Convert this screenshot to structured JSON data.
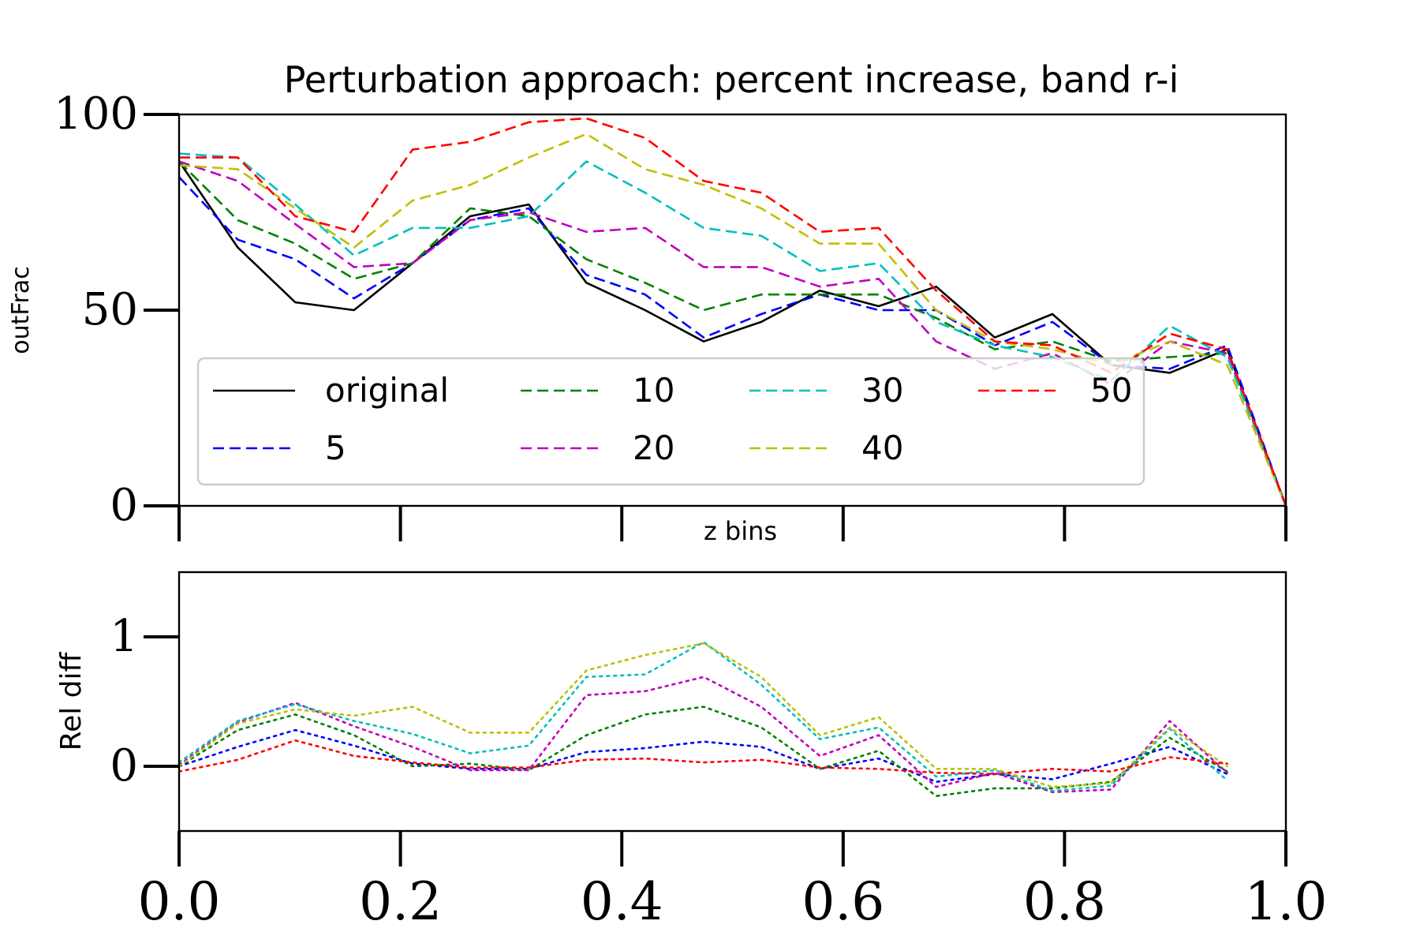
{
  "chart_data": [
    {
      "type": "line",
      "title": "Perturbation approach: percent increase, band r-i",
      "xlabel": "z bins",
      "ylabel": "outFrac",
      "xlim": [
        0.0,
        1.0
      ],
      "ylim": [
        0,
        100
      ],
      "xticks": [
        "0.0",
        "0.2",
        "0.4",
        "0.6",
        "0.8",
        "1.0"
      ],
      "yticks": [
        "0",
        "50",
        "100"
      ],
      "grid": false,
      "legend_position": "lower-left",
      "x": [
        0.0,
        0.053,
        0.105,
        0.158,
        0.211,
        0.263,
        0.316,
        0.368,
        0.421,
        0.474,
        0.526,
        0.579,
        0.632,
        0.684,
        0.737,
        0.789,
        0.842,
        0.895,
        0.947,
        1.0
      ],
      "series": [
        {
          "name": "original",
          "color": "#000000",
          "style": "solid",
          "values": [
            88,
            66,
            52,
            50,
            62,
            74,
            77,
            57,
            50,
            42,
            47,
            55,
            51,
            56,
            43,
            49,
            36,
            34,
            40,
            0
          ]
        },
        {
          "name": "5",
          "color": "#0000ff",
          "style": "dashed",
          "values": [
            84,
            68,
            63,
            53,
            62,
            73,
            76,
            59,
            54,
            43,
            49,
            54,
            50,
            50,
            41,
            47,
            36,
            35,
            41,
            0
          ]
        },
        {
          "name": "10",
          "color": "#008000",
          "style": "dashed",
          "values": [
            88,
            73,
            67,
            58,
            62,
            76,
            74,
            63,
            57,
            50,
            54,
            54,
            54,
            48,
            40,
            42,
            37,
            38,
            39,
            0
          ]
        },
        {
          "name": "20",
          "color": "#bf00bf",
          "style": "dashed",
          "values": [
            88,
            83,
            72,
            61,
            62,
            73,
            75,
            70,
            71,
            61,
            61,
            56,
            58,
            42,
            35,
            39,
            31,
            42,
            39,
            0
          ]
        },
        {
          "name": "30",
          "color": "#00bfbf",
          "style": "dashed",
          "values": [
            90,
            89,
            77,
            64,
            71,
            71,
            74,
            88,
            80,
            71,
            69,
            60,
            62,
            47,
            41,
            38,
            32,
            46,
            38,
            0
          ]
        },
        {
          "name": "40",
          "color": "#bfbf00",
          "style": "dashed",
          "values": [
            87,
            86,
            76,
            66,
            78,
            82,
            89,
            95,
            86,
            82,
            76,
            67,
            67,
            50,
            42,
            40,
            36,
            42,
            36,
            0
          ]
        },
        {
          "name": "50",
          "color": "#ff0000",
          "style": "dashed",
          "values": [
            89,
            89,
            74,
            70,
            91,
            93,
            98,
            99,
            94,
            83,
            80,
            70,
            71,
            55,
            42,
            41,
            34,
            44,
            40,
            0
          ]
        }
      ]
    },
    {
      "type": "line",
      "xlabel": "z bins",
      "ylabel": "Rel diff",
      "xlim": [
        0.0,
        1.0
      ],
      "ylim": [
        -0.5,
        1.5
      ],
      "xticks": [
        "0.0",
        "0.2",
        "0.4",
        "0.6",
        "0.8",
        "1.0"
      ],
      "yticks": [
        "0",
        "1"
      ],
      "grid": false,
      "x": [
        0.0,
        0.053,
        0.105,
        0.158,
        0.211,
        0.263,
        0.316,
        0.368,
        0.421,
        0.474,
        0.526,
        0.579,
        0.632,
        0.684,
        0.737,
        0.789,
        0.842,
        0.895,
        0.947
      ],
      "series": [
        {
          "name": "5",
          "color": "#0000ff",
          "style": "dotted",
          "values": [
            0.0,
            0.15,
            0.28,
            0.16,
            0.02,
            -0.02,
            -0.02,
            0.11,
            0.14,
            0.19,
            0.15,
            -0.02,
            0.06,
            -0.12,
            -0.06,
            -0.1,
            0.02,
            0.15,
            -0.06
          ]
        },
        {
          "name": "10",
          "color": "#008000",
          "style": "dotted",
          "values": [
            0.0,
            0.28,
            0.4,
            0.24,
            0.0,
            0.02,
            -0.03,
            0.24,
            0.4,
            0.46,
            0.3,
            -0.02,
            0.12,
            -0.23,
            -0.17,
            -0.17,
            -0.12,
            0.22,
            -0.04
          ]
        },
        {
          "name": "20",
          "color": "#bf00bf",
          "style": "dotted",
          "values": [
            0.01,
            0.34,
            0.49,
            0.31,
            0.15,
            -0.03,
            -0.03,
            0.55,
            0.58,
            0.69,
            0.46,
            0.08,
            0.24,
            -0.16,
            -0.05,
            -0.2,
            -0.18,
            0.35,
            -0.05
          ]
        },
        {
          "name": "30",
          "color": "#00bfbf",
          "style": "dotted",
          "values": [
            0.03,
            0.35,
            0.48,
            0.35,
            0.25,
            0.1,
            0.16,
            0.69,
            0.71,
            0.96,
            0.63,
            0.21,
            0.3,
            -0.08,
            -0.03,
            -0.19,
            -0.15,
            0.29,
            -0.11
          ]
        },
        {
          "name": "40",
          "color": "#bfbf00",
          "style": "dotted",
          "values": [
            0.0,
            0.33,
            0.44,
            0.39,
            0.46,
            0.26,
            0.26,
            0.74,
            0.86,
            0.95,
            0.69,
            0.24,
            0.38,
            -0.02,
            -0.02,
            -0.16,
            -0.13,
            0.3,
            0.0
          ]
        },
        {
          "name": "50",
          "color": "#ff0000",
          "style": "dotted",
          "values": [
            -0.04,
            0.05,
            0.2,
            0.08,
            0.03,
            -0.01,
            -0.01,
            0.05,
            0.06,
            0.03,
            0.05,
            -0.01,
            -0.02,
            -0.05,
            -0.06,
            -0.02,
            -0.04,
            0.07,
            0.02
          ]
        }
      ]
    }
  ]
}
